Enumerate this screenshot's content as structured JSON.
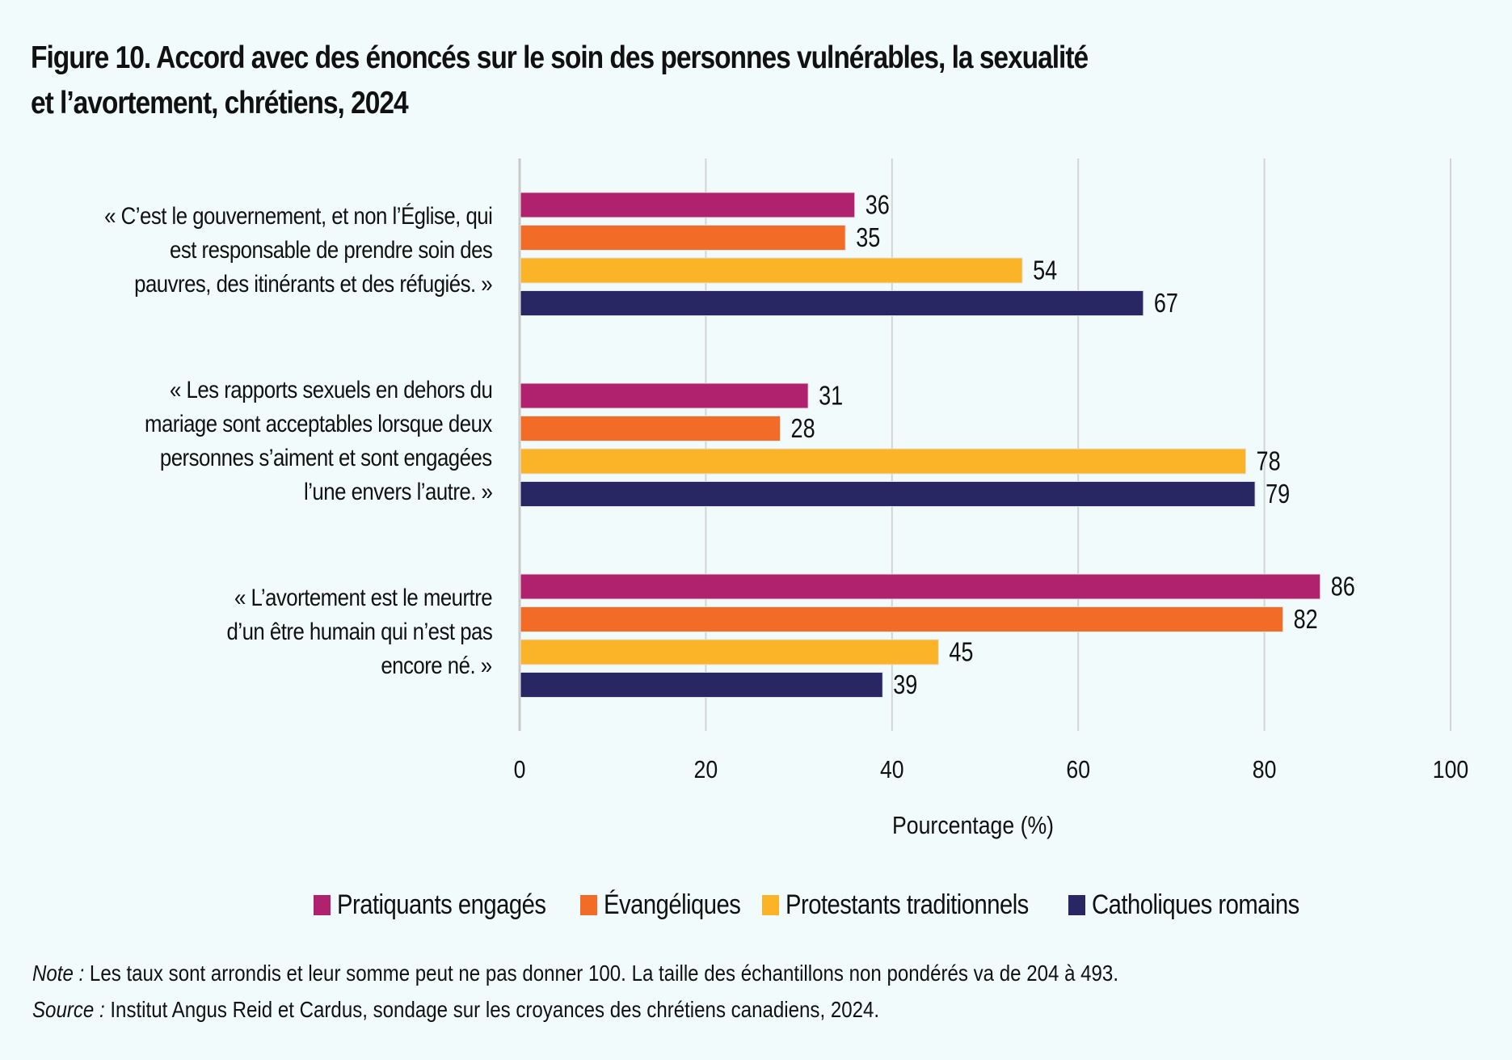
{
  "title_line1": "Figure 10. Accord avec des énoncés sur le soin des personnes vulnérables, la sexualité",
  "title_line2": "et l’avortement, chrétiens, 2024",
  "chart_data": {
    "type": "bar",
    "orientation": "horizontal",
    "title": "Figure 10. Accord avec des énoncés sur le soin des personnes vulnérables, la sexualité et l’avortement, chrétiens, 2024",
    "categories": [
      [
        "« C’est le gouvernement, et non l’Église, qui",
        "est responsable de prendre soin des",
        "pauvres, des itinérants et des réfugiés. »"
      ],
      [
        "« Les rapports sexuels en dehors du",
        "mariage sont acceptables lorsque deux",
        "personnes s’aiment et sont engagées",
        "l’une envers l’autre. »"
      ],
      [
        "« L’avortement est le meurtre",
        "d’un être humain qui n’est pas",
        "encore né. »"
      ]
    ],
    "series": [
      {
        "name": "Pratiquants engagés",
        "color": "#b0226e",
        "values": [
          36,
          31,
          86
        ]
      },
      {
        "name": "Évangéliques",
        "color": "#f26c27",
        "values": [
          35,
          28,
          82
        ]
      },
      {
        "name": "Protestants traditionnels",
        "color": "#fbb327",
        "values": [
          54,
          78,
          45
        ]
      },
      {
        "name": "Catholiques romains",
        "color": "#292664",
        "values": [
          67,
          79,
          39
        ]
      }
    ],
    "xlabel": "Pourcentage (%)",
    "ylabel": "",
    "xlim": [
      0,
      100
    ],
    "xticks": [
      "0",
      "20",
      "40",
      "60",
      "80",
      "100"
    ],
    "grid": true,
    "legend_position": "bottom",
    "data_labels": true
  },
  "note_label": "Note :",
  "note_text": " Les taux sont arrondis et leur somme peut ne pas donner 100. La taille des échantillons non pondérés va de 204 à 493.",
  "source_label": "Source :",
  "source_text": " Institut Angus Reid et Cardus, sondage sur les croyances des chrétiens canadiens, 2024."
}
